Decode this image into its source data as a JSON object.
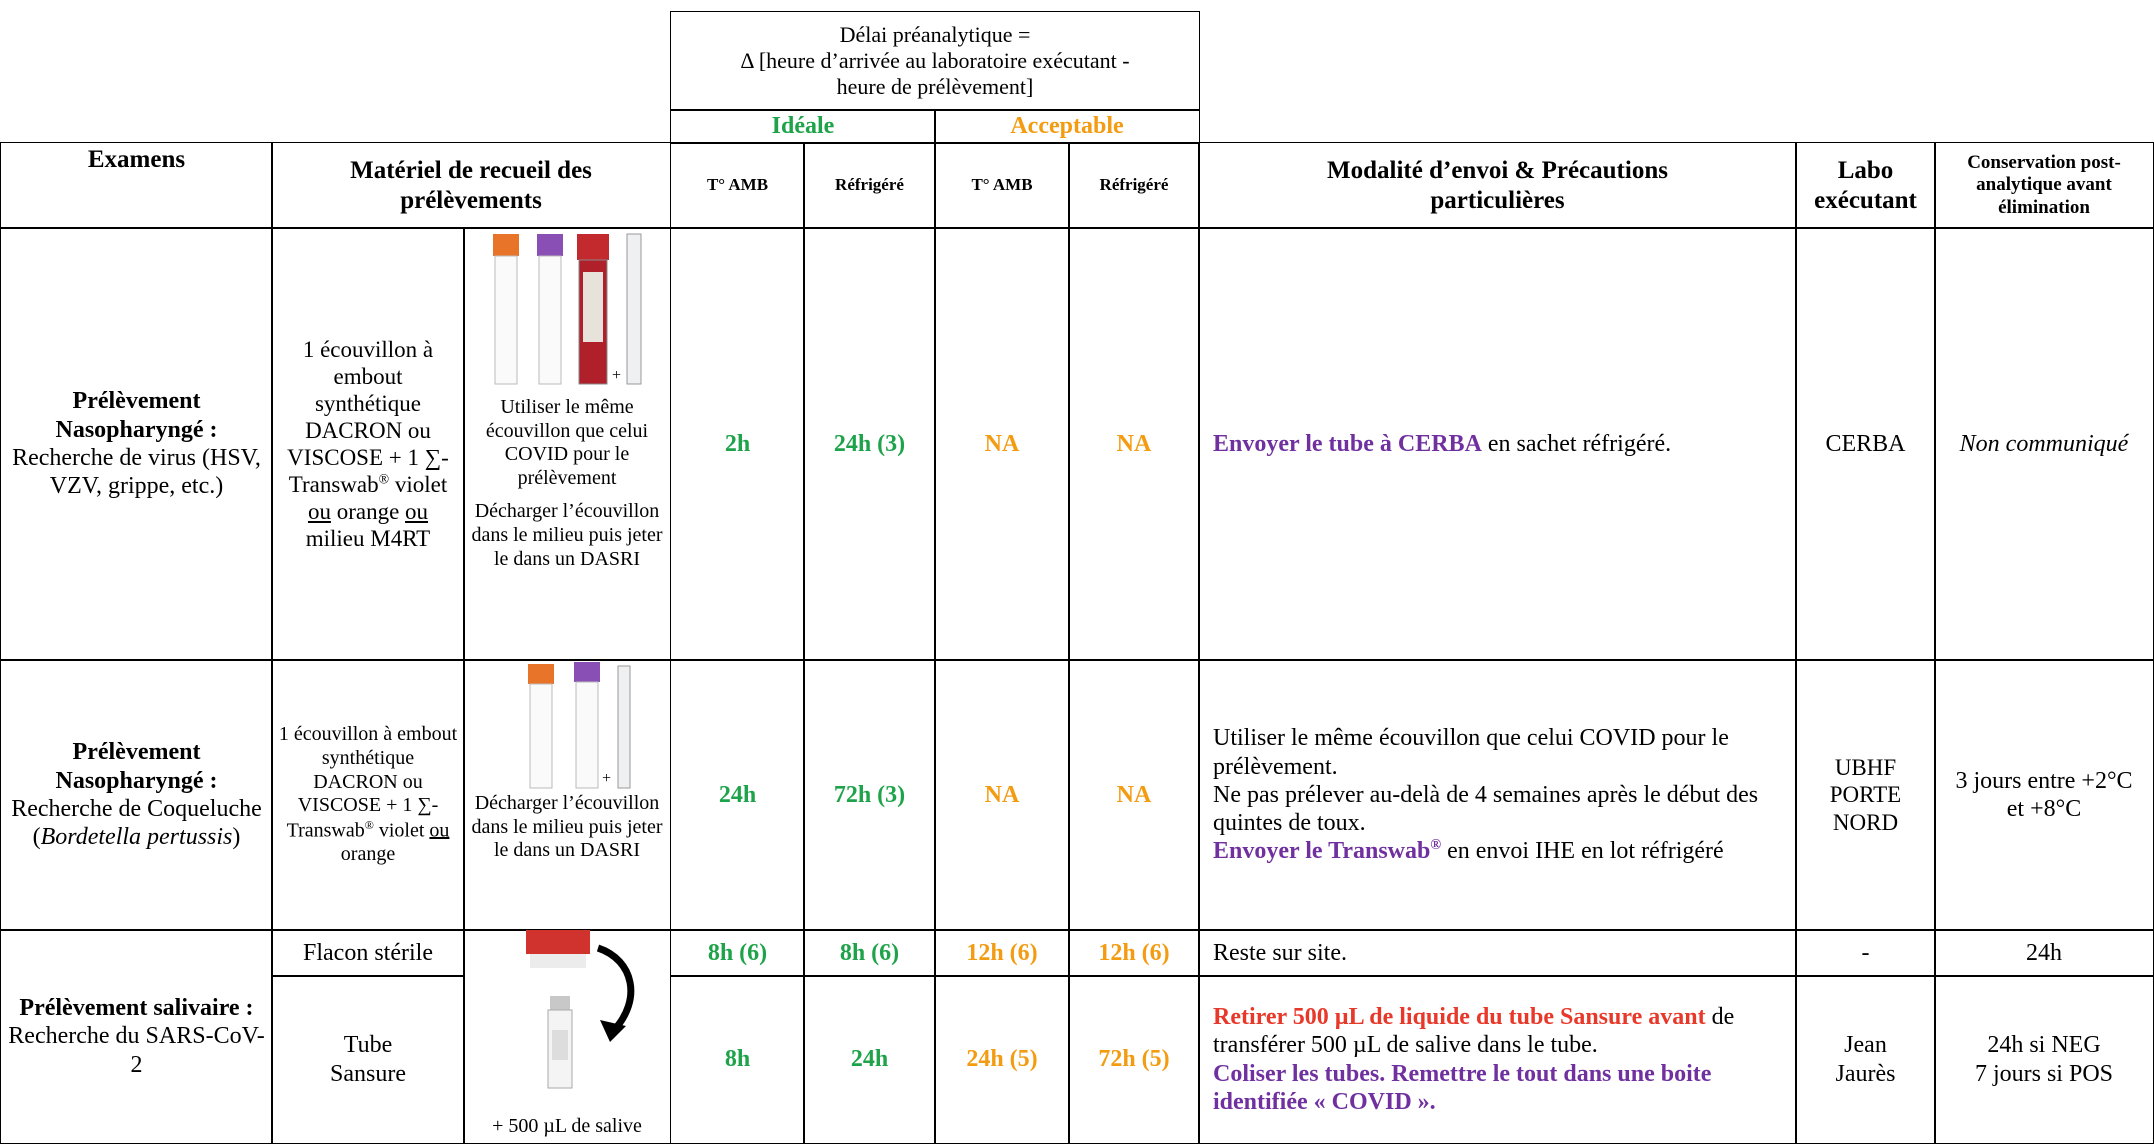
{
  "header": {
    "delay": [
      "Délai préanalytique =",
      "Δ [heure d’arrivée au laboratoire exécutant -",
      "heure de prélèvement]"
    ],
    "ideal": "Idéale",
    "acceptable": "Acceptable",
    "exams": "Examens",
    "material": "Matériel de recueil des prélèvements",
    "ideal_amb": "T° AMB",
    "ideal_fridge": "Réfrigéré",
    "acc_amb": "T° AMB",
    "acc_fridge": "Réfrigéré",
    "shipping": "Modalité d’envoi & Précautions particulières",
    "lab": "Labo exécutant",
    "conservation": "Conservation post-analytique avant élimination"
  },
  "rows": [
    {
      "exam": [
        "Prélèvement Nasopharyngé :",
        "Recherche de virus (HSV, VZV, grippe, etc.)"
      ],
      "material": [
        "1 écouvillon à embout synthétique DACRON ou VISCOSE + 1 ∑-Transwab",
        "®",
        " violet ",
        "ou",
        " orange ",
        "ou",
        " milieu M4RT"
      ],
      "image_notes": [
        "+",
        "Utiliser le même écouvillon que celui COVID pour le prélèvement",
        "Décharger l’écouvillon dans le milieu puis jeter le dans un DASRI"
      ],
      "ideal_amb": "2h",
      "ideal_fridge": "24h (3)",
      "acc_amb": "NA",
      "acc_fridge": "NA",
      "shipping": [
        "Envoyer le tube à CERBA",
        " en sachet réfrigéré."
      ],
      "lab": "CERBA",
      "conservation": "Non communiqué"
    },
    {
      "exam": [
        "Prélèvement Nasopharyngé :",
        "Recherche de Coqueluche (",
        "Bordetella pertussis",
        ")"
      ],
      "material": [
        "1 écouvillon à embout synthétique DACRON ou VISCOSE + 1 ∑-Transwab",
        "®",
        " violet ",
        "ou",
        " orange"
      ],
      "image_notes": [
        "+",
        "Décharger l’écouvillon dans le milieu puis jeter le dans un DASRI"
      ],
      "ideal_amb": "24h",
      "ideal_fridge": "72h (3)",
      "acc_amb": "NA",
      "acc_fridge": "NA",
      "shipping": [
        "Utiliser le même écouvillon que celui COVID pour le prélèvement.",
        "Ne pas prélever au-delà de 4 semaines après le début des quintes de toux.",
        "Envoyer le Transwab",
        "®",
        " en envoi IHE en lot réfrigéré"
      ],
      "lab": "UBHF PORTE NORD",
      "conservation": "3 jours entre +2°C et +8°C"
    },
    {
      "exam": [
        "Prélèvement salivaire :",
        "Recherche du SARS-CoV-2"
      ],
      "samples": [
        {
          "material": "Flacon stérile",
          "ideal_amb": "8h (6)",
          "ideal_fridge": "8h (6)",
          "acc_amb": "12h (6)",
          "acc_fridge": "12h (6)",
          "shipping": [
            "Reste sur site."
          ],
          "lab": "-",
          "conservation": [
            "24h"
          ]
        },
        {
          "material": "Tube Sansure",
          "image_notes": [
            "+ 500 µL de salive"
          ],
          "ideal_amb": "8h",
          "ideal_fridge": "24h",
          "acc_amb": "24h (5)",
          "acc_fridge": "72h (5)",
          "shipping": [
            "Retirer 500 µL de liquide du tube Sansure avant",
            " de transférer 500 µL de salive dans le tube.",
            "Coliser les tubes. Remettre le tout dans une boite identifiée « COVID »."
          ],
          "lab": "Jean Jaurès",
          "conservation": [
            "24h si NEG",
            "7 jours si POS"
          ]
        }
      ]
    }
  ]
}
